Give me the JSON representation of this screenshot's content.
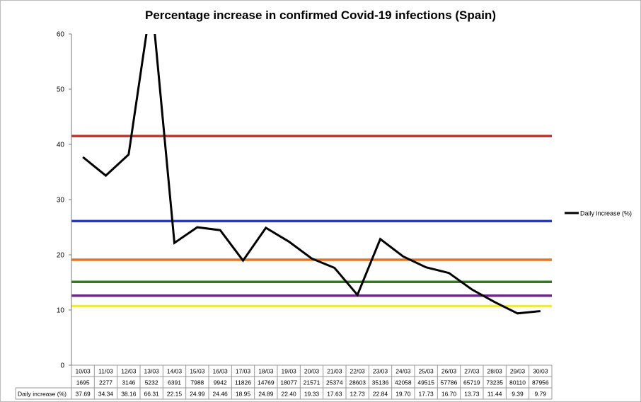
{
  "chart_data": {
    "type": "line",
    "title": "Percentage increase in confirmed Covid-19 infections (Spain)",
    "xlabel": "",
    "ylabel": "",
    "ylim": [
      0,
      60
    ],
    "yticks": [
      0,
      10,
      20,
      30,
      40,
      50,
      60
    ],
    "grid": false,
    "legend_position": "right",
    "categories": [
      "10/03",
      "11/03",
      "12/03",
      "13/03",
      "14/03",
      "15/03",
      "16/03",
      "17/03",
      "18/03",
      "19/03",
      "20/03",
      "21/03",
      "22/03",
      "23/03",
      "24/03",
      "25/03",
      "26/03",
      "27/03",
      "28/03",
      "29/03",
      "30/03"
    ],
    "confirmed_cases": [
      "1695",
      "2277",
      "3146",
      "5232",
      "6391",
      "7988",
      "9942",
      "11826",
      "14769",
      "18077",
      "21571",
      "25374",
      "28603",
      "35136",
      "42058",
      "49515",
      "57786",
      "65719",
      "73235",
      "80110",
      "87956"
    ],
    "series": [
      {
        "name": "Daily increase (%)",
        "color": "#000000",
        "values": [
          37.69,
          34.34,
          38.16,
          66.31,
          22.15,
          24.99,
          24.46,
          18.95,
          24.89,
          22.4,
          19.33,
          17.63,
          12.73,
          22.84,
          19.7,
          17.73,
          16.7,
          13.73,
          11.44,
          9.39,
          9.79
        ],
        "value_labels": [
          "37.69",
          "34.34",
          "38.16",
          "66.31",
          "22.15",
          "24.99",
          "24.46",
          "18.95",
          "24.89",
          "22.40",
          "19.33",
          "17.63",
          "12.73",
          "22.84",
          "19.70",
          "17.73",
          "16.70",
          "13.73",
          "11.44",
          "9.39",
          "9.79"
        ]
      }
    ],
    "reference_lines": [
      {
        "value": 41.5,
        "color": "#d0312d"
      },
      {
        "value": 26.1,
        "color": "#2436d8"
      },
      {
        "value": 19.1,
        "color": "#e8731e"
      },
      {
        "value": 15.1,
        "color": "#2e7d18"
      },
      {
        "value": 12.6,
        "color": "#6a2a86"
      },
      {
        "value": 10.7,
        "color": "#f2ef1e"
      }
    ]
  }
}
